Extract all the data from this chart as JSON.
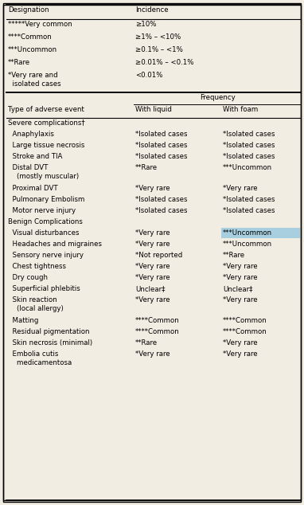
{
  "bg_color": "#f2ede3",
  "border_color": "#000000",
  "header_section": {
    "col1_header": "Designation",
    "col2_header": "Incidence",
    "rows": [
      [
        "*****Very common",
        "≥10%"
      ],
      [
        "****Common",
        "≥1% – <10%"
      ],
      [
        "***Uncommon",
        "≥0.1% – <1%"
      ],
      [
        "**Rare",
        "≥0.01% – <0.1%"
      ],
      [
        "*Very rare and\n  isolated cases",
        "<0.01%"
      ]
    ]
  },
  "frequency_label": "Frequency",
  "main_section": {
    "col1_header": "Type of adverse event",
    "col2_header": "With liquid",
    "col3_header": "With foam",
    "rows": [
      [
        "Severe complications†",
        "",
        ""
      ],
      [
        "  Anaphylaxis",
        "*Isolated cases",
        "*Isolated cases"
      ],
      [
        "  Large tissue necrosis",
        "*Isolated cases",
        "*Isolated cases"
      ],
      [
        "  Stroke and TIA",
        "*Isolated cases",
        "*Isolated cases"
      ],
      [
        "  Distal DVT\n    (mostly muscular)",
        "**Rare",
        "***Uncommon"
      ],
      [
        "  Proximal DVT",
        "*Very rare",
        "*Very rare"
      ],
      [
        "  Pulmonary Embolism",
        "*Isolated cases",
        "*Isolated cases"
      ],
      [
        "  Motor nerve injury",
        "*Isolated cases",
        "*Isolated cases"
      ],
      [
        "Benign Complications",
        "",
        ""
      ],
      [
        "  Visual disturbances",
        "*Very rare",
        "***Uncommon"
      ],
      [
        "  Headaches and migraines",
        "*Very rare",
        "***Uncommon"
      ],
      [
        "  Sensory nerve injury",
        "*Not reported",
        "**Rare"
      ],
      [
        "  Chest tightness",
        "*Very rare",
        "*Very rare"
      ],
      [
        "  Dry cough",
        "*Very rare",
        "*Very rare"
      ],
      [
        "  Superficial phlebitis",
        "Unclear‡",
        "Unclear‡"
      ],
      [
        "  Skin reaction\n    (local allergy)",
        "*Very rare",
        "*Very rare"
      ],
      [
        "  Matting",
        "****Common",
        "****Common"
      ],
      [
        "  Residual pigmentation",
        "****Common",
        "****Common"
      ],
      [
        "  Skin necrosis (minimal)",
        "**Rare",
        "*Very rare"
      ],
      [
        "  Embolia cutis\n    medicamentosa",
        "*Very rare",
        "*Very rare"
      ]
    ]
  },
  "highlight_cell": {
    "row": 9,
    "col": 2,
    "color": "#a8cfe0"
  }
}
